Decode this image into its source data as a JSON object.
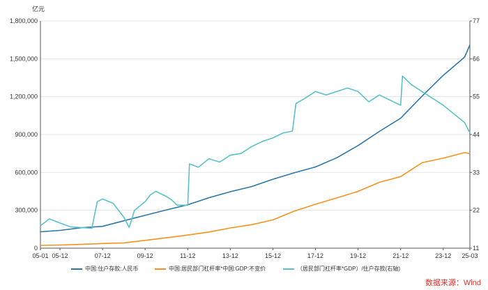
{
  "chart_data": {
    "type": "line",
    "left_unit": "亿元",
    "x_ticks": [
      "05-01",
      "05-12",
      "07-12",
      "09-12",
      "11-12",
      "13-12",
      "15-12",
      "17-12",
      "19-12",
      "21-12",
      "23-12",
      "25-03"
    ],
    "y_left": {
      "ticks": [
        "0",
        "300,000",
        "600,000",
        "900,000",
        "1,200,000",
        "1,500,000",
        "1,800,000"
      ],
      "range": [
        0,
        1800000
      ]
    },
    "y_right": {
      "ticks": [
        "11",
        "22",
        "33",
        "44",
        "55",
        "66",
        "77"
      ],
      "range": [
        11,
        77
      ]
    },
    "series": [
      {
        "name": "中国:住户存款:人民币",
        "axis": "left",
        "color": "#2b78a6",
        "points": [
          [
            "2005-01",
            130000
          ],
          [
            "2005-12",
            141000
          ],
          [
            "2006-12",
            162000
          ],
          [
            "2007-12",
            173000
          ],
          [
            "2008-12",
            217000
          ],
          [
            "2009-12",
            260000
          ],
          [
            "2010-12",
            303000
          ],
          [
            "2011-12",
            344000
          ],
          [
            "2012-12",
            400000
          ],
          [
            "2013-12",
            447000
          ],
          [
            "2014-12",
            488000
          ],
          [
            "2015-12",
            546000
          ],
          [
            "2016-12",
            597000
          ],
          [
            "2017-12",
            643000
          ],
          [
            "2018-12",
            716000
          ],
          [
            "2019-12",
            813000
          ],
          [
            "2020-12",
            925000
          ],
          [
            "2021-12",
            1029000
          ],
          [
            "2022-12",
            1203000
          ],
          [
            "2023-12",
            1369000
          ],
          [
            "2024-12",
            1513000
          ],
          [
            "2025-03",
            1610000
          ]
        ]
      },
      {
        "name": "中国:居民部门杠杆率*中国:GDP:不变价",
        "axis": "left",
        "color": "#f6921e",
        "points": [
          [
            "2005-01",
            22000
          ],
          [
            "2005-12",
            25000
          ],
          [
            "2006-12",
            30000
          ],
          [
            "2007-12",
            37000
          ],
          [
            "2008-12",
            42000
          ],
          [
            "2009-12",
            62000
          ],
          [
            "2010-12",
            82000
          ],
          [
            "2011-12",
            104000
          ],
          [
            "2012-12",
            128000
          ],
          [
            "2013-12",
            160000
          ],
          [
            "2014-12",
            186000
          ],
          [
            "2015-12",
            224000
          ],
          [
            "2016-12",
            293000
          ],
          [
            "2017-12",
            348000
          ],
          [
            "2018-12",
            398000
          ],
          [
            "2019-12",
            450000
          ],
          [
            "2020-12",
            522000
          ],
          [
            "2021-12",
            567000
          ],
          [
            "2022-12",
            677000
          ],
          [
            "2023-12",
            713000
          ],
          [
            "2024-12",
            757000
          ],
          [
            "2025-03",
            748000
          ]
        ]
      },
      {
        "name": "（居民部门杠杆率*GDP）/住户存款(右轴)",
        "axis": "right",
        "color": "#5bc0c9",
        "points": [
          [
            "2005-01",
            17.5
          ],
          [
            "2005-06",
            19.5
          ],
          [
            "2005-12",
            18.3
          ],
          [
            "2006-06",
            17.2
          ],
          [
            "2006-12",
            17.0
          ],
          [
            "2007-06",
            16.8
          ],
          [
            "2007-09",
            24.5
          ],
          [
            "2007-12",
            25.3
          ],
          [
            "2008-06",
            24.0
          ],
          [
            "2008-12",
            20.0
          ],
          [
            "2009-03",
            17.0
          ],
          [
            "2009-06",
            22.0
          ],
          [
            "2009-12",
            24.5
          ],
          [
            "2010-03",
            26.5
          ],
          [
            "2010-06",
            27.5
          ],
          [
            "2010-12",
            26.0
          ],
          [
            "2011-03",
            25.0
          ],
          [
            "2011-06",
            23.5
          ],
          [
            "2011-12",
            23.5
          ],
          [
            "2012-01",
            35.5
          ],
          [
            "2012-06",
            34.5
          ],
          [
            "2012-12",
            37.0
          ],
          [
            "2013-06",
            36.0
          ],
          [
            "2013-12",
            38.0
          ],
          [
            "2014-06",
            38.5
          ],
          [
            "2014-12",
            40.5
          ],
          [
            "2015-06",
            42.0
          ],
          [
            "2015-12",
            43.0
          ],
          [
            "2016-06",
            44.5
          ],
          [
            "2016-11",
            45.0
          ],
          [
            "2017-01",
            53.0
          ],
          [
            "2017-06",
            54.5
          ],
          [
            "2017-12",
            56.5
          ],
          [
            "2018-06",
            55.5
          ],
          [
            "2018-12",
            56.5
          ],
          [
            "2019-06",
            57.5
          ],
          [
            "2019-12",
            56.5
          ],
          [
            "2020-06",
            53.5
          ],
          [
            "2020-12",
            55.5
          ],
          [
            "2021-06",
            54.0
          ],
          [
            "2021-12",
            52.5
          ],
          [
            "2022-01",
            61.0
          ],
          [
            "2022-06",
            58.5
          ],
          [
            "2022-12",
            56.5
          ],
          [
            "2023-06",
            54.5
          ],
          [
            "2023-12",
            52.5
          ],
          [
            "2024-06",
            50.0
          ],
          [
            "2024-12",
            47.5
          ],
          [
            "2025-03",
            44.5
          ]
        ]
      }
    ],
    "legend_position": "bottom",
    "grid": "horizontal"
  },
  "source_note": "数据来源：Wind"
}
